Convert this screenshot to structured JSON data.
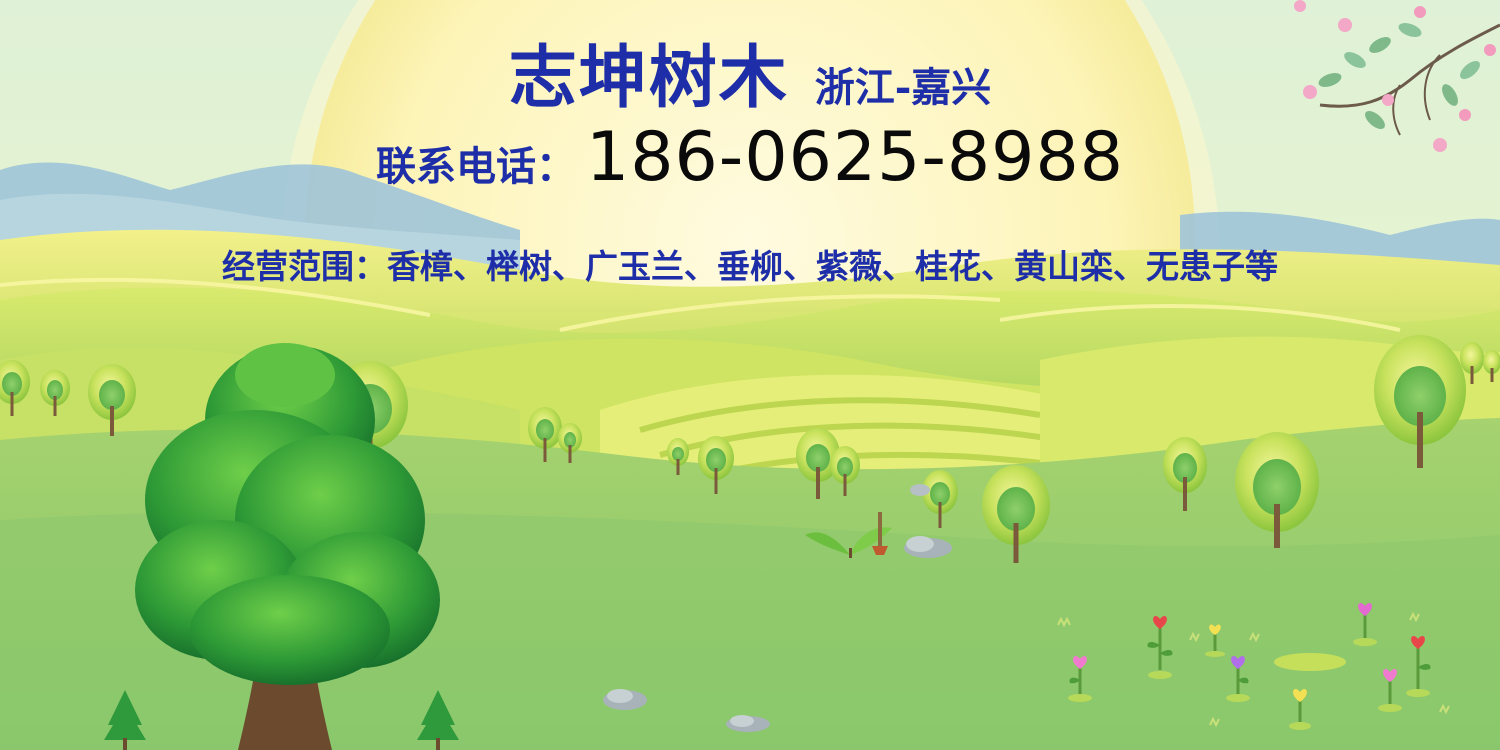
{
  "banner": {
    "brand": "志坤树木",
    "location": "浙江-嘉兴",
    "phone_label": "联系电话：",
    "phone_number": "186-0625-8988",
    "scope": "经营范围：香樟、榉树、广玉兰、垂柳、紫薇、桂花、黄山栾、无患子等"
  },
  "colors": {
    "title_blue": "#1d2ea8",
    "phone_black": "#0a0a0a",
    "sun": "#fdf6c0",
    "grass": "#8ecb6e",
    "hills": "#cde36a"
  },
  "illustration": {
    "icons": [
      "sun-icon",
      "mountain-icon",
      "hills-icon",
      "big-tree-icon",
      "small-tree-icon",
      "flower-icon",
      "rock-icon",
      "blossom-branch-icon",
      "sprout-icon"
    ]
  }
}
